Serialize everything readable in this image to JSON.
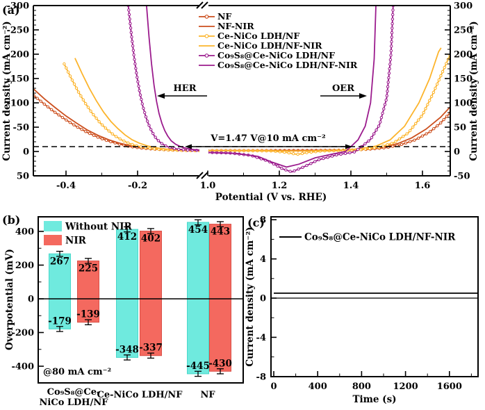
{
  "figure": {
    "panel_a_label": "(a)",
    "panel_b_label": "(b)",
    "panel_c_label": "(c)"
  },
  "chart_data": [
    {
      "id": "a",
      "type": "line",
      "xlabel": "Potential (V vs. RHE)",
      "ylabel_left": "Current density (mA cm⁻²)",
      "ylabel_right": "Current density (mA cm⁻²)",
      "x_axis_break_between": [
        -0.02,
        1.0
      ],
      "xlim_left_segment": [
        -0.49,
        -0.02
      ],
      "xlim_right_segment": [
        1.0,
        1.68
      ],
      "ylim_left": [
        -300,
        50
      ],
      "ylim_right": [
        300,
        -50
      ],
      "xticks_left_segment": [
        -0.4,
        -0.2
      ],
      "xticks_right_segment": [
        1.0,
        1.2,
        1.4,
        1.6
      ],
      "yticks_left": [
        -300,
        -250,
        -200,
        -150,
        -100,
        -50,
        0,
        50
      ],
      "yticks_right": [
        300,
        250,
        200,
        150,
        100,
        50,
        0,
        -50
      ],
      "dashed_guide_current": 10,
      "annotations": {
        "her": "HER",
        "oer": "OER",
        "cell_voltage": "V=1.47 V@10 mA cm⁻²"
      },
      "series": [
        {
          "name": "NF",
          "color": "#cc4f1e",
          "marker": true,
          "her": [
            [
              -0.49,
              -115
            ],
            [
              -0.46,
              -97
            ],
            [
              -0.43,
              -80
            ],
            [
              -0.4,
              -65
            ],
            [
              -0.37,
              -51
            ],
            [
              -0.34,
              -39
            ],
            [
              -0.31,
              -29
            ],
            [
              -0.28,
              -21
            ],
            [
              -0.25,
              -15
            ],
            [
              -0.22,
              -10
            ],
            [
              -0.19,
              -7
            ],
            [
              -0.16,
              -5
            ],
            [
              -0.12,
              -3.5
            ],
            [
              -0.08,
              -2.5
            ],
            [
              -0.04,
              -2
            ],
            [
              -0.02,
              -2
            ]
          ],
          "oer": [
            [
              1.0,
              2
            ],
            [
              1.1,
              2
            ],
            [
              1.2,
              2
            ],
            [
              1.3,
              2.2
            ],
            [
              1.35,
              2.5
            ],
            [
              1.4,
              3
            ],
            [
              1.45,
              4.5
            ],
            [
              1.5,
              8
            ],
            [
              1.54,
              14
            ],
            [
              1.58,
              24
            ],
            [
              1.62,
              40
            ],
            [
              1.65,
              58
            ],
            [
              1.678,
              80
            ]
          ]
        },
        {
          "name": "NF-NIR",
          "color": "#cc4f1e",
          "marker": false,
          "her": [
            [
              -0.49,
              -128
            ],
            [
              -0.46,
              -108
            ],
            [
              -0.43,
              -90
            ],
            [
              -0.4,
              -73
            ],
            [
              -0.37,
              -58
            ],
            [
              -0.34,
              -44
            ],
            [
              -0.31,
              -33
            ],
            [
              -0.28,
              -24
            ],
            [
              -0.25,
              -17
            ],
            [
              -0.22,
              -12
            ],
            [
              -0.19,
              -8
            ],
            [
              -0.15,
              -5
            ],
            [
              -0.11,
              -3
            ],
            [
              -0.06,
              -2
            ],
            [
              -0.02,
              -2
            ]
          ],
          "oer": [
            [
              1.0,
              2
            ],
            [
              1.15,
              2
            ],
            [
              1.3,
              2.5
            ],
            [
              1.38,
              3
            ],
            [
              1.44,
              5
            ],
            [
              1.49,
              9
            ],
            [
              1.53,
              16
            ],
            [
              1.57,
              28
            ],
            [
              1.61,
              46
            ],
            [
              1.65,
              70
            ],
            [
              1.678,
              92
            ]
          ]
        },
        {
          "name": "Ce-NiCo LDH/NF",
          "color": "#fcb42c",
          "marker": true,
          "her": [
            [
              -0.405,
              -180
            ],
            [
              -0.385,
              -150
            ],
            [
              -0.365,
              -122
            ],
            [
              -0.345,
              -98
            ],
            [
              -0.325,
              -77
            ],
            [
              -0.305,
              -59
            ],
            [
              -0.285,
              -45
            ],
            [
              -0.265,
              -33
            ],
            [
              -0.245,
              -24
            ],
            [
              -0.225,
              -17
            ],
            [
              -0.205,
              -12
            ],
            [
              -0.18,
              -8
            ],
            [
              -0.15,
              -5
            ],
            [
              -0.11,
              -3
            ],
            [
              -0.06,
              -2
            ],
            [
              -0.02,
              -1.5
            ]
          ],
          "oer": [
            [
              1.0,
              1.5
            ],
            [
              1.1,
              1.5
            ],
            [
              1.18,
              1
            ],
            [
              1.22,
              -2
            ],
            [
              1.25,
              -6
            ],
            [
              1.28,
              -2
            ],
            [
              1.32,
              1
            ],
            [
              1.38,
              2
            ],
            [
              1.43,
              4
            ],
            [
              1.48,
              9
            ],
            [
              1.52,
              18
            ],
            [
              1.56,
              38
            ],
            [
              1.6,
              75
            ],
            [
              1.63,
              120
            ],
            [
              1.66,
              170
            ],
            [
              1.678,
              200
            ]
          ]
        },
        {
          "name": "Ce-NiCo LDH/NF-NIR",
          "color": "#fcb42c",
          "marker": false,
          "her": [
            [
              -0.375,
              -192
            ],
            [
              -0.355,
              -160
            ],
            [
              -0.335,
              -130
            ],
            [
              -0.315,
              -104
            ],
            [
              -0.295,
              -81
            ],
            [
              -0.275,
              -62
            ],
            [
              -0.255,
              -47
            ],
            [
              -0.235,
              -34
            ],
            [
              -0.215,
              -24
            ],
            [
              -0.195,
              -17
            ],
            [
              -0.17,
              -11
            ],
            [
              -0.14,
              -6.5
            ],
            [
              -0.1,
              -3.5
            ],
            [
              -0.05,
              -2
            ],
            [
              -0.02,
              -1.5
            ]
          ],
          "oer": [
            [
              1.0,
              1.5
            ],
            [
              1.15,
              1.5
            ],
            [
              1.25,
              1
            ],
            [
              1.35,
              2
            ],
            [
              1.42,
              5
            ],
            [
              1.47,
              11
            ],
            [
              1.51,
              24
            ],
            [
              1.55,
              52
            ],
            [
              1.59,
              100
            ],
            [
              1.62,
              150
            ],
            [
              1.645,
              205
            ],
            [
              1.652,
              213
            ]
          ]
        },
        {
          "name": "Co₉S₈@Ce-NiCo LDH/NF",
          "color": "#9b1b8d",
          "marker": true,
          "her": [
            [
              -0.226,
              -300
            ],
            [
              -0.218,
              -245
            ],
            [
              -0.21,
              -196
            ],
            [
              -0.202,
              -155
            ],
            [
              -0.194,
              -122
            ],
            [
              -0.186,
              -95
            ],
            [
              -0.178,
              -74
            ],
            [
              -0.17,
              -57
            ],
            [
              -0.162,
              -44
            ],
            [
              -0.154,
              -33
            ],
            [
              -0.146,
              -25
            ],
            [
              -0.134,
              -17
            ],
            [
              -0.12,
              -11
            ],
            [
              -0.105,
              -7
            ],
            [
              -0.085,
              -4.5
            ],
            [
              -0.06,
              -3
            ],
            [
              -0.02,
              -2
            ]
          ],
          "oer": [
            [
              1.0,
              -2
            ],
            [
              1.06,
              -3
            ],
            [
              1.12,
              -8
            ],
            [
              1.17,
              -20
            ],
            [
              1.21,
              -36
            ],
            [
              1.235,
              -42
            ],
            [
              1.27,
              -31
            ],
            [
              1.31,
              -17
            ],
            [
              1.36,
              -7
            ],
            [
              1.41,
              -1
            ],
            [
              1.43,
              10
            ],
            [
              1.455,
              25
            ],
            [
              1.48,
              55
            ],
            [
              1.5,
              110
            ],
            [
              1.512,
              200
            ],
            [
              1.518,
              300
            ]
          ],
          "dashed_crossing_oer_V": 1.43
        },
        {
          "name": "Co₉S₈@Ce-NiCo LDH/NF-NIR",
          "color": "#9b1b8d",
          "marker": false,
          "her": [
            [
              -0.175,
              -300
            ],
            [
              -0.168,
              -235
            ],
            [
              -0.161,
              -180
            ],
            [
              -0.154,
              -136
            ],
            [
              -0.147,
              -103
            ],
            [
              -0.14,
              -78
            ],
            [
              -0.132,
              -58
            ],
            [
              -0.124,
              -43
            ],
            [
              -0.116,
              -32
            ],
            [
              -0.106,
              -22
            ],
            [
              -0.094,
              -15
            ],
            [
              -0.08,
              -10
            ],
            [
              -0.065,
              -6.5
            ],
            [
              -0.045,
              -4
            ],
            [
              -0.02,
              -2.5
            ]
          ],
          "oer": [
            [
              1.0,
              -2
            ],
            [
              1.08,
              -4
            ],
            [
              1.14,
              -10
            ],
            [
              1.18,
              -22
            ],
            [
              1.22,
              -32
            ],
            [
              1.255,
              -26
            ],
            [
              1.3,
              -13
            ],
            [
              1.35,
              -5
            ],
            [
              1.385,
              0
            ],
            [
              1.4,
              10
            ],
            [
              1.42,
              24
            ],
            [
              1.44,
              52
            ],
            [
              1.455,
              100
            ],
            [
              1.465,
              190
            ],
            [
              1.47,
              300
            ]
          ],
          "dashed_crossing_oer_V": 1.4
        }
      ]
    },
    {
      "id": "b",
      "type": "bar",
      "ylabel": "Overpotential (mV)",
      "yticks": [
        400,
        200,
        0,
        -200,
        -400
      ],
      "ylim": [
        -487,
        487
      ],
      "categories": [
        "Co₉S₈@Ce-NiCo LDH/NF",
        "Ce-NiCo LDH/NF",
        "NF"
      ],
      "categories_display": [
        [
          "Co₉S₈@Ce-",
          "NiCo LDH/NF"
        ],
        [
          "Ce-NiCo LDH/NF"
        ],
        [
          "NF"
        ]
      ],
      "annotation": "@80 mA cm⁻²",
      "error_mV": 15,
      "series": [
        {
          "name": "Without NIR",
          "color": "#6feade",
          "edge": "#49d8ca",
          "oer": [
            267,
            412,
            454
          ],
          "her": [
            -179,
            -348,
            -445
          ]
        },
        {
          "name": "NIR",
          "color": "#f4695f",
          "edge": "#d94f46",
          "oer": [
            225,
            402,
            443
          ],
          "her": [
            -139,
            -337,
            -430
          ]
        }
      ]
    },
    {
      "id": "c",
      "type": "line",
      "xlabel": "Time (s)",
      "ylabel": "Current density (mA cm⁻²)",
      "xticks": [
        0,
        400,
        800,
        1200,
        1600
      ],
      "yticks": [
        8,
        4,
        0,
        -4,
        -8
      ],
      "xlim": [
        0,
        1860
      ],
      "ylim": [
        -8,
        8
      ],
      "legend": "Co₉S₈@Ce-NiCo LDH/NF-NIR",
      "series": [
        {
          "name": "Co₉S₈@Ce-NiCo LDH/NF-NIR",
          "color": "#000000",
          "points": [
            [
              0,
              0.5
            ],
            [
              1860,
              0.5
            ]
          ]
        }
      ]
    }
  ]
}
